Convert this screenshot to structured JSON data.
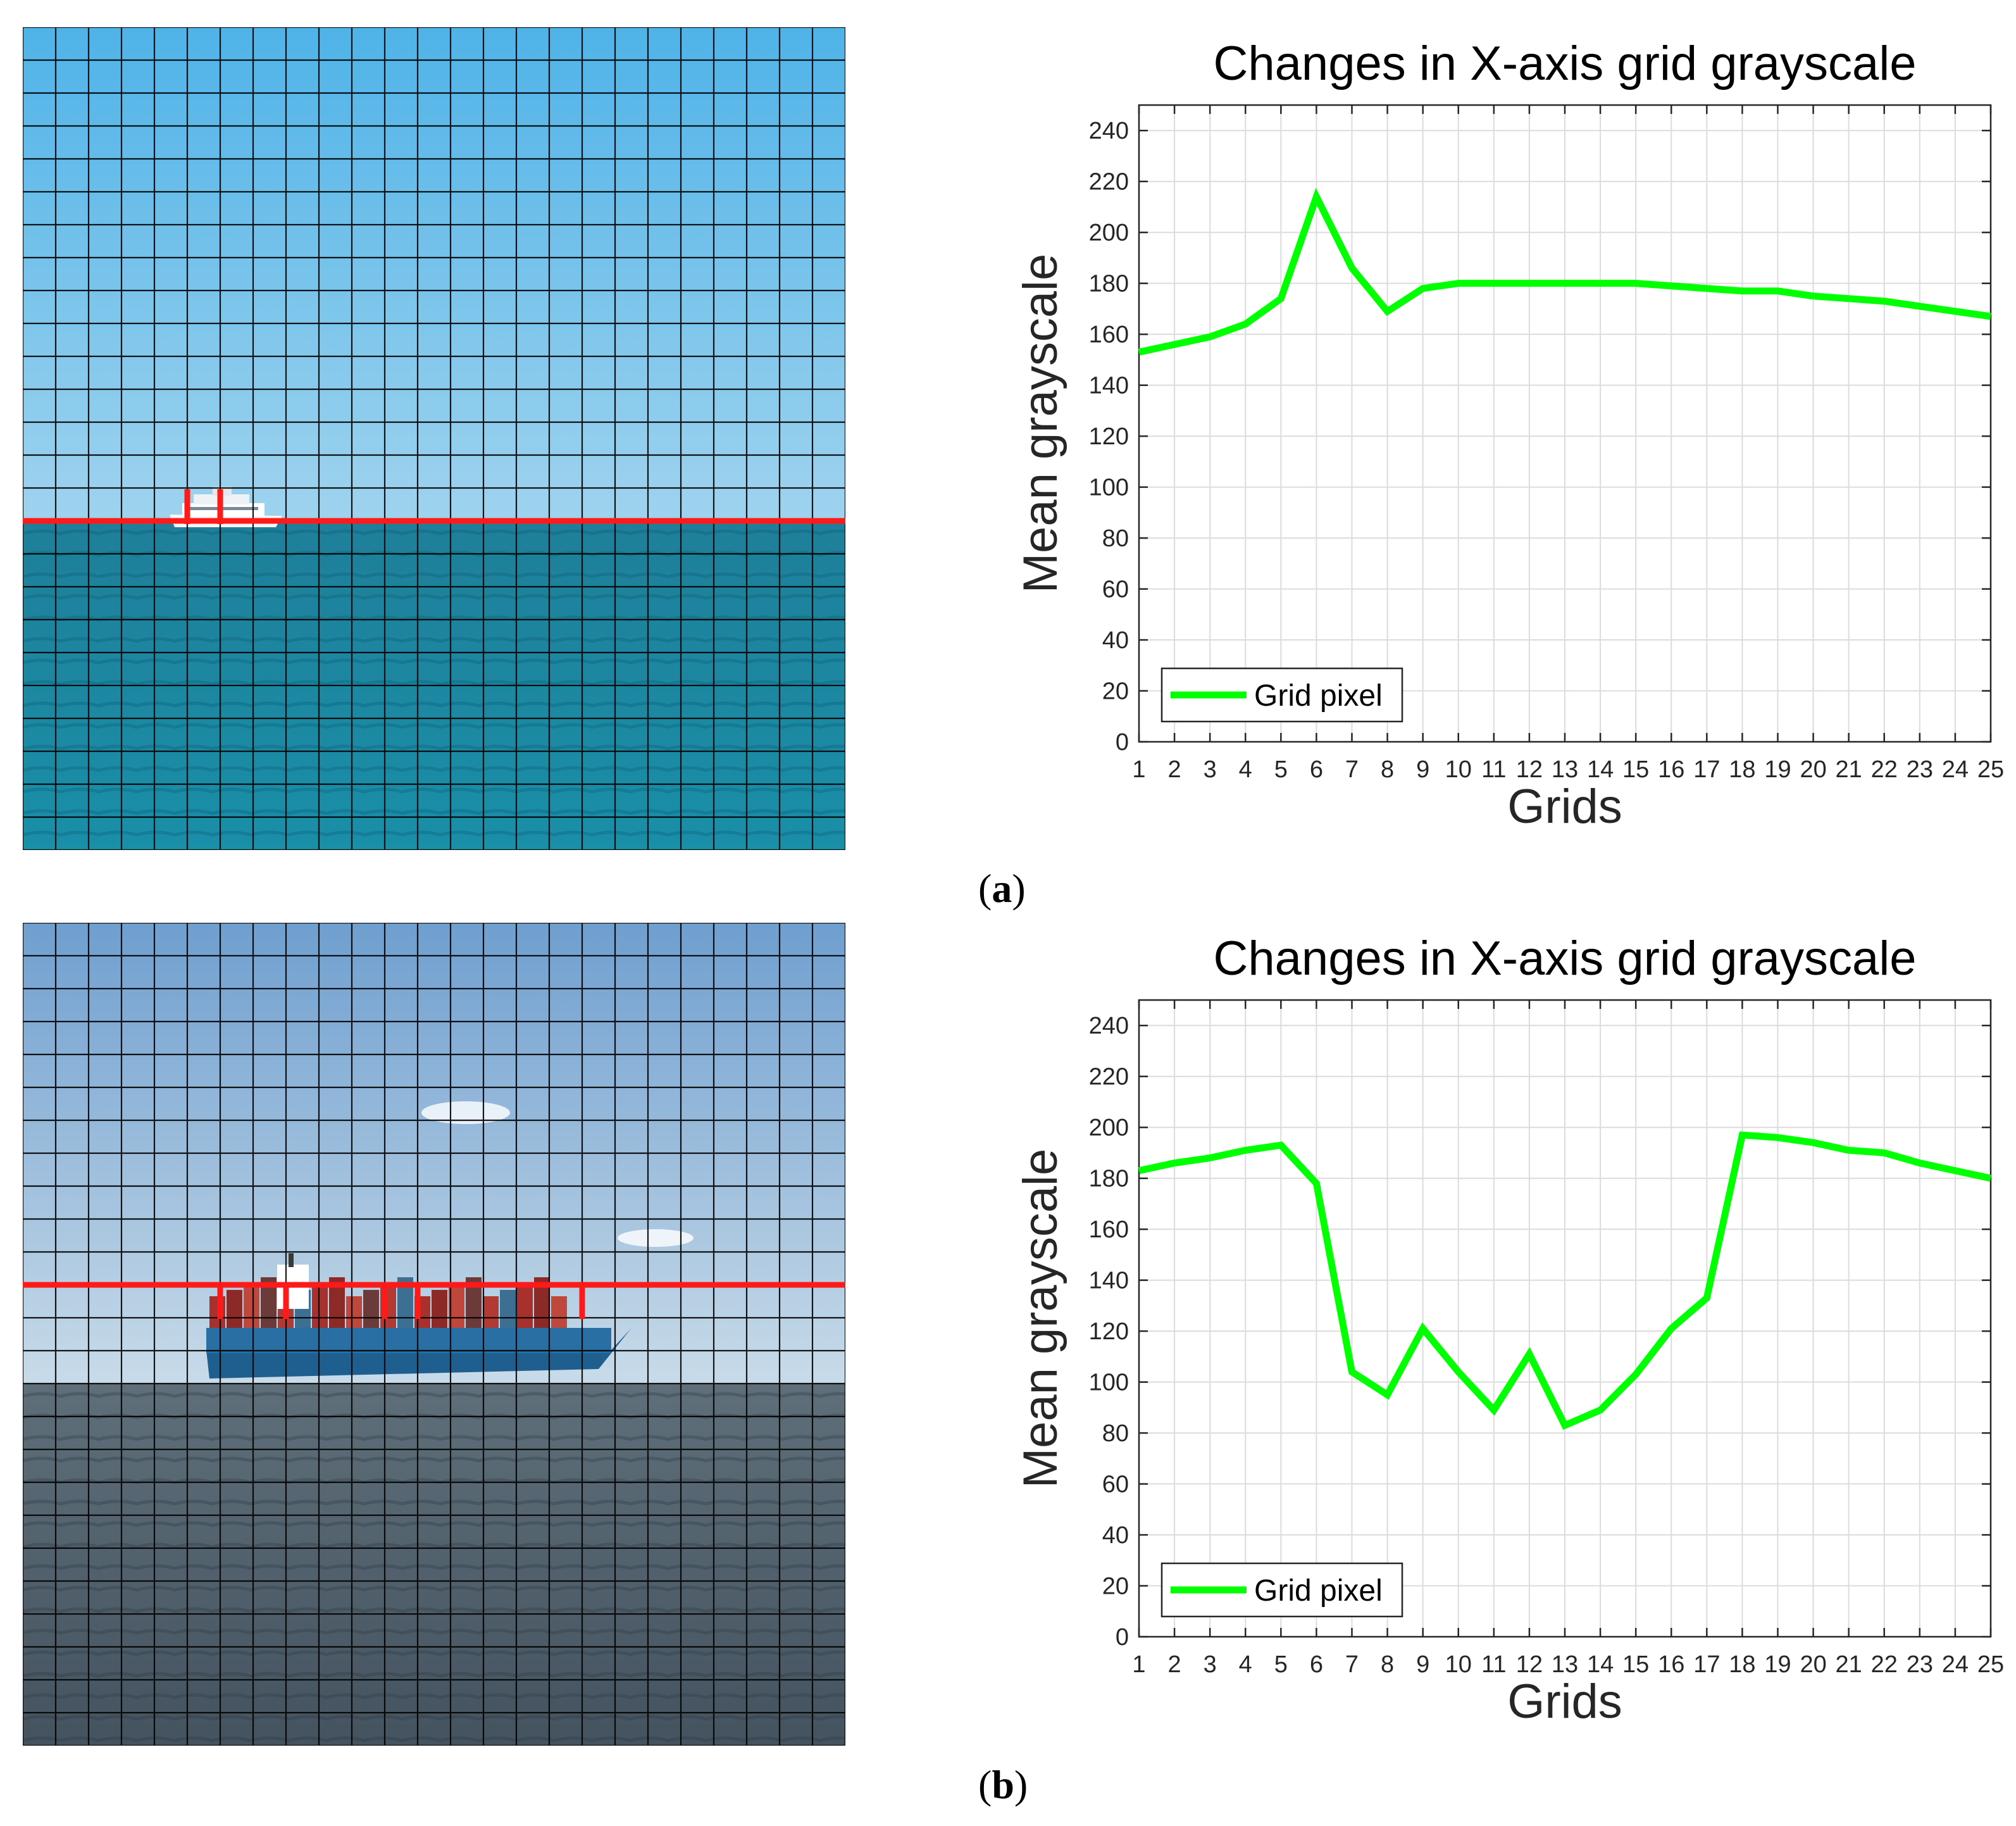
{
  "panels": [
    {
      "label": "a",
      "photo": {
        "description_icon": "ship-photo-icon",
        "sky_top": "#4fb3e8",
        "sky_bottom": "#9fd3ee",
        "sea_top": "#1f7f9a",
        "sea_bottom": "#1a8fa8",
        "grid_color": "#000000",
        "marker_color": "#ff1a1a"
      },
      "chart_data": {
        "type": "line",
        "title": "Changes in X-axis grid grayscale",
        "xlabel": "Grids",
        "ylabel": "Mean grayscale",
        "xlim": [
          1,
          25
        ],
        "ylim": [
          0,
          250
        ],
        "xticks": [
          1,
          2,
          3,
          4,
          5,
          6,
          7,
          8,
          9,
          10,
          11,
          12,
          13,
          14,
          15,
          16,
          17,
          18,
          19,
          20,
          21,
          22,
          23,
          24,
          25
        ],
        "yticks": [
          0,
          20,
          40,
          60,
          80,
          100,
          120,
          140,
          160,
          180,
          200,
          220,
          240
        ],
        "grid": true,
        "legend_position": "bottom-left",
        "series": [
          {
            "name": "Grid pixel",
            "color": "#00ff00",
            "x": [
              1,
              2,
              3,
              4,
              5,
              6,
              7,
              8,
              9,
              10,
              11,
              12,
              13,
              14,
              15,
              16,
              17,
              18,
              19,
              20,
              21,
              22,
              23,
              24,
              25
            ],
            "y": [
              153,
              156,
              159,
              164,
              174,
              214,
              186,
              169,
              178,
              180,
              180,
              180,
              180,
              180,
              180,
              179,
              178,
              177,
              177,
              175,
              174,
              173,
              171,
              169,
              167
            ]
          }
        ]
      }
    },
    {
      "label": "b",
      "photo": {
        "description_icon": "container-ship-photo-icon",
        "sky_top": "#6f9fcf",
        "sky_bottom": "#c8dbe9",
        "sea_top": "#5f6f7a",
        "sea_bottom": "#44535f",
        "grid_color": "#000000",
        "marker_color": "#ff1a1a"
      },
      "chart_data": {
        "type": "line",
        "title": "Changes in X-axis grid grayscale",
        "xlabel": "Grids",
        "ylabel": "Mean grayscale",
        "xlim": [
          1,
          25
        ],
        "ylim": [
          0,
          250
        ],
        "xticks": [
          1,
          2,
          3,
          4,
          5,
          6,
          7,
          8,
          9,
          10,
          11,
          12,
          13,
          14,
          15,
          16,
          17,
          18,
          19,
          20,
          21,
          22,
          23,
          24,
          25
        ],
        "yticks": [
          0,
          20,
          40,
          60,
          80,
          100,
          120,
          140,
          160,
          180,
          200,
          220,
          240
        ],
        "grid": true,
        "legend_position": "bottom-left",
        "series": [
          {
            "name": "Grid pixel",
            "color": "#00ff00",
            "x": [
              1,
              2,
              3,
              4,
              5,
              6,
              7,
              8,
              9,
              10,
              11,
              12,
              13,
              14,
              15,
              16,
              17,
              18,
              19,
              20,
              21,
              22,
              23,
              24,
              25
            ],
            "y": [
              183,
              186,
              188,
              191,
              193,
              178,
              104,
              95,
              121,
              104,
              89,
              111,
              83,
              89,
              103,
              121,
              133,
              197,
              196,
              194,
              191,
              190,
              186,
              183,
              180
            ]
          }
        ]
      }
    }
  ]
}
